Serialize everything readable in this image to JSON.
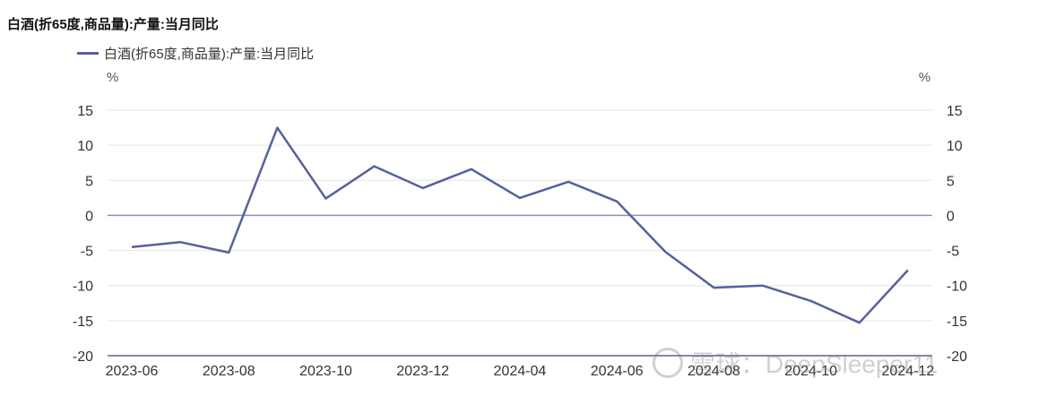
{
  "title": "白酒(折65度,商品量):产量:当月同比",
  "unit_left": "%",
  "unit_right": "%",
  "watermark": "雪球：DeepSleeper11",
  "colors": {
    "series": "#5660a0",
    "zero_line": "#8a93b0",
    "grid": "#e6e6e6",
    "axis": "#5660a0"
  },
  "chart_data": {
    "type": "line",
    "title": "白酒(折65度,商品量):产量:当月同比",
    "xlabel": "",
    "ylabel": "%",
    "y2label": "%",
    "ylim": [
      -20,
      15
    ],
    "yticks": [
      15,
      10,
      5,
      0,
      -5,
      -10,
      -15,
      -20
    ],
    "grid": true,
    "legend_position": "top-left",
    "x": [
      "2023-06",
      "2023-07",
      "2023-08",
      "2023-09",
      "2023-10",
      "2023-11",
      "2023-12",
      "2024-03",
      "2024-04",
      "2024-05",
      "2024-06",
      "2024-07",
      "2024-08",
      "2024-09",
      "2024-10",
      "2024-11",
      "2024-12"
    ],
    "xtick_labels": [
      "2023-06",
      "2023-08",
      "2023-10",
      "2023-12",
      "2024-04",
      "2024-06",
      "2024-08",
      "2024-10",
      "2024-12"
    ],
    "series": [
      {
        "name": "白酒(折65度,商品量):产量:当月同比",
        "values": [
          -4.5,
          -3.8,
          -5.3,
          12.5,
          2.4,
          7.0,
          3.9,
          6.6,
          2.5,
          4.8,
          2.0,
          -5.2,
          -10.3,
          -10.0,
          -12.2,
          -15.3,
          -7.8
        ]
      }
    ]
  }
}
